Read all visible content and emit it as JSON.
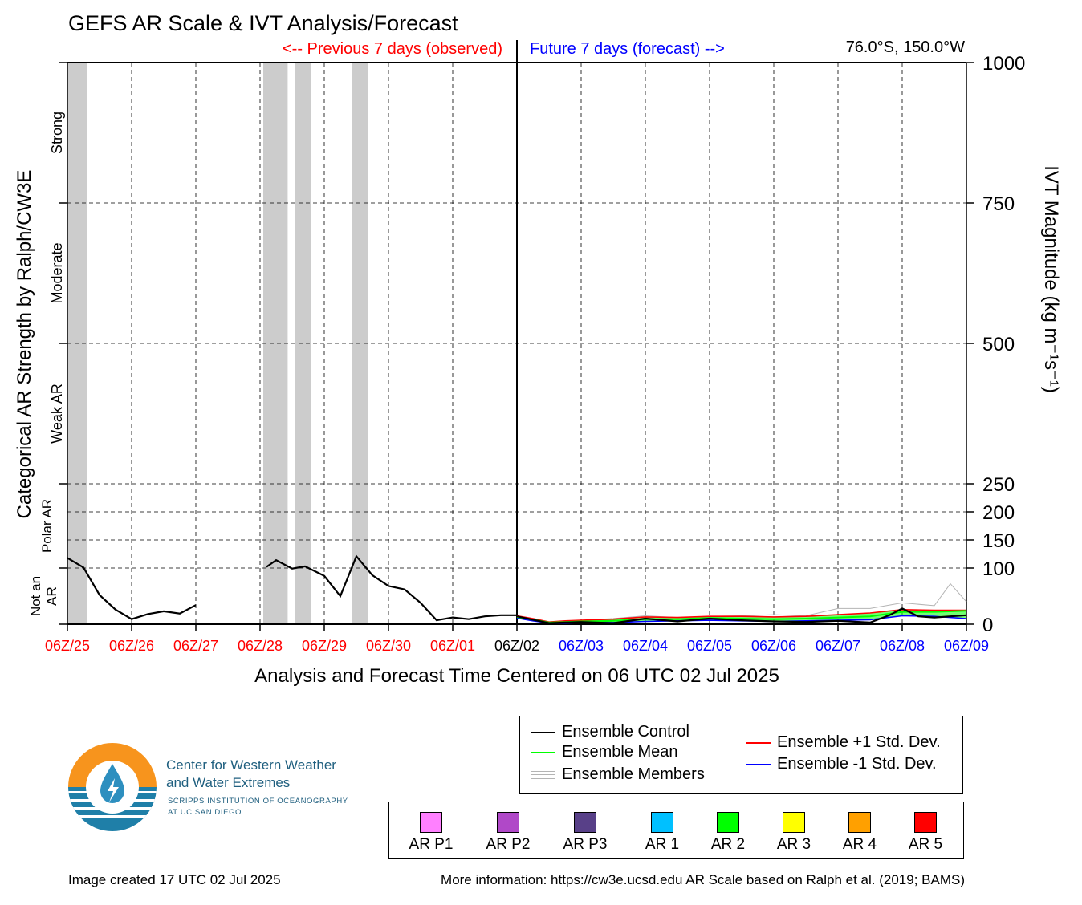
{
  "title": "GEFS AR Scale & IVT Analysis/Forecast",
  "header": {
    "previous_label": "<-- Previous 7 days (observed)",
    "future_label": "Future 7 days (forecast) -->",
    "location": "76.0°S, 150.0°W"
  },
  "colors": {
    "observed": "#ff0000",
    "forecast": "#0000ff",
    "control": "#000000",
    "mean": "#00ff00",
    "plus_std": "#ff0000",
    "minus_std": "#0000ff",
    "members": "#b4b4b4",
    "shading": "#cccccc"
  },
  "chart_data": {
    "type": "line",
    "xlabel": "Analysis and Forecast Time Centered on 06 UTC 02 Jul 2025",
    "ylabel_left": "Categorical AR Strength by Ralph/CW3E",
    "ylabel_right": "IVT Magnitude (kg m⁻¹s⁻¹)",
    "ylim": [
      0,
      1000
    ],
    "xlim": [
      -7,
      7
    ],
    "grid": true,
    "x_ticks": [
      {
        "x": -7,
        "label": "06Z/25",
        "period": "observed"
      },
      {
        "x": -6,
        "label": "06Z/26",
        "period": "observed"
      },
      {
        "x": -5,
        "label": "06Z/27",
        "period": "observed"
      },
      {
        "x": -4,
        "label": "06Z/28",
        "period": "observed"
      },
      {
        "x": -3,
        "label": "06Z/29",
        "period": "observed"
      },
      {
        "x": -2,
        "label": "06Z/30",
        "period": "observed"
      },
      {
        "x": -1,
        "label": "06Z/01",
        "period": "observed"
      },
      {
        "x": 0,
        "label": "06Z/02",
        "period": "current"
      },
      {
        "x": 1,
        "label": "06Z/03",
        "period": "forecast"
      },
      {
        "x": 2,
        "label": "06Z/04",
        "period": "forecast"
      },
      {
        "x": 3,
        "label": "06Z/05",
        "period": "forecast"
      },
      {
        "x": 4,
        "label": "06Z/06",
        "period": "forecast"
      },
      {
        "x": 5,
        "label": "06Z/07",
        "period": "forecast"
      },
      {
        "x": 6,
        "label": "06Z/08",
        "period": "forecast"
      },
      {
        "x": 7,
        "label": "06Z/09",
        "period": "forecast"
      }
    ],
    "y_ticks": [
      {
        "y": 0,
        "label": "0"
      },
      {
        "y": 100,
        "label": "100"
      },
      {
        "y": 150,
        "label": "150"
      },
      {
        "y": 200,
        "label": "200"
      },
      {
        "y": 250,
        "label": "250"
      },
      {
        "y": 500,
        "label": "500"
      },
      {
        "y": 750,
        "label": "750"
      },
      {
        "y": 1000,
        "label": "1000"
      }
    ],
    "categories": [
      {
        "label": "Strong",
        "y_from": 750,
        "y_to": 1000
      },
      {
        "label": "Moderate",
        "y_from": 500,
        "y_to": 750
      },
      {
        "label": "Weak AR",
        "y_from": 250,
        "y_to": 500
      },
      {
        "label": "Polar AR",
        "y_from": 100,
        "y_to": 250
      },
      {
        "label": "Not an AR",
        "y_from": 0,
        "y_to": 100
      }
    ],
    "shaded_periods": [
      [
        -7,
        -6.7
      ],
      [
        -3.95,
        -3.57
      ],
      [
        -3.45,
        -3.2
      ],
      [
        -2.57,
        -2.32
      ]
    ],
    "observed_segments": [
      [
        [
          -7,
          118
        ],
        [
          -6.75,
          101
        ],
        [
          -6.5,
          52
        ],
        [
          -6.25,
          26
        ],
        [
          -6,
          9
        ],
        [
          -5.75,
          18
        ],
        [
          -5.5,
          23
        ],
        [
          -5.25,
          19
        ],
        [
          -5,
          34
        ]
      ],
      [
        [
          -3.9,
          102
        ],
        [
          -3.75,
          114
        ],
        [
          -3.5,
          99
        ],
        [
          -3.3,
          103
        ],
        [
          -3,
          86
        ],
        [
          -2.75,
          50
        ],
        [
          -2.5,
          121
        ],
        [
          -2.25,
          87
        ],
        [
          -2,
          68
        ],
        [
          -1.75,
          62
        ],
        [
          -1.5,
          38
        ],
        [
          -1.25,
          7
        ],
        [
          -1,
          12
        ],
        [
          -0.75,
          9
        ],
        [
          -0.5,
          14
        ],
        [
          -0.25,
          16
        ],
        [
          0,
          16
        ]
      ]
    ],
    "series": [
      {
        "name": "Ensemble Control",
        "x": [
          0,
          0.25,
          0.5,
          0.75,
          1,
          1.5,
          2,
          2.5,
          3,
          3.5,
          4,
          4.5,
          5,
          5.5,
          5.8,
          6,
          6.25,
          6.5,
          7
        ],
        "values": [
          14,
          8,
          2,
          3,
          4,
          2,
          10,
          5,
          10,
          7,
          5,
          4,
          6,
          3,
          16,
          28,
          14,
          12,
          16
        ]
      },
      {
        "name": "Ensemble Mean",
        "x": [
          0,
          0.25,
          0.5,
          0.75,
          1,
          1.5,
          2,
          2.5,
          3,
          3.5,
          4,
          4.5,
          5,
          5.5,
          6,
          6.5,
          7
        ],
        "values": [
          13,
          8,
          3,
          4,
          5,
          6,
          9,
          9,
          11,
          10,
          9,
          10,
          12,
          14,
          22,
          22,
          24
        ]
      },
      {
        "name": "Ensemble +1 Std. Dev.",
        "x": [
          0,
          0.25,
          0.5,
          0.75,
          1,
          1.5,
          2,
          2.5,
          3,
          3.5,
          4,
          4.5,
          5,
          5.5,
          6,
          6.5,
          7
        ],
        "values": [
          15,
          10,
          4,
          6,
          7,
          9,
          13,
          12,
          14,
          14,
          13,
          14,
          17,
          20,
          26,
          25,
          25
        ]
      },
      {
        "name": "Ensemble -1 Std. Dev.",
        "x": [
          0,
          0.25,
          0.5,
          0.75,
          1,
          1.5,
          2,
          2.5,
          3,
          3.5,
          4,
          4.5,
          5,
          5.5,
          6,
          6.5,
          7
        ],
        "values": [
          11,
          6,
          2,
          2,
          3,
          3,
          5,
          6,
          7,
          6,
          5,
          6,
          7,
          8,
          15,
          14,
          10
        ]
      },
      {
        "name": "Ensemble Members",
        "x": [
          0,
          0.5,
          1,
          1.5,
          2,
          2.5,
          3,
          3.5,
          4,
          4.5,
          5,
          5.5,
          6,
          6.5,
          6.75,
          7
        ],
        "values": [
          15,
          4,
          7,
          10,
          15,
          12,
          14,
          15,
          17,
          15,
          28,
          28,
          38,
          33,
          72,
          40
        ]
      }
    ],
    "legend": [
      "Ensemble Control",
      "Ensemble Mean",
      "Ensemble Members",
      "Ensemble +1 Std. Dev.",
      "Ensemble -1 Std. Dev."
    ]
  },
  "ar_scale": [
    {
      "label": "AR P1",
      "color": "#ff80ff"
    },
    {
      "label": "AR P2",
      "color": "#b048c8"
    },
    {
      "label": "AR P3",
      "color": "#584088"
    },
    {
      "label": "AR 1",
      "color": "#00c0ff"
    },
    {
      "label": "AR 2",
      "color": "#00ff00"
    },
    {
      "label": "AR 3",
      "color": "#ffff00"
    },
    {
      "label": "AR 4",
      "color": "#ffa000"
    },
    {
      "label": "AR 5",
      "color": "#ff0000"
    }
  ],
  "logo": {
    "line1": "Center for Western Weather",
    "line2": "and Water Extremes",
    "line3": "SCRIPPS INSTITUTION OF OCEANOGRAPHY",
    "line4": "AT UC SAN DIEGO"
  },
  "footer": {
    "created": "Image created 17 UTC 02 Jul 2025",
    "info": "More information: https://cw3e.ucsd.edu AR Scale based on Ralph et al. (2019; BAMS)"
  }
}
